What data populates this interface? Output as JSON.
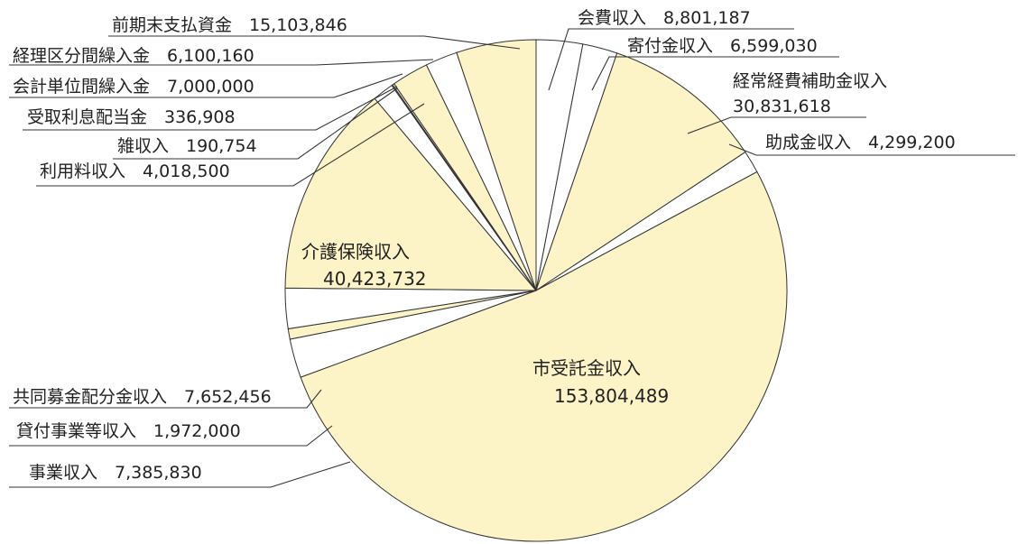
{
  "chart_data": {
    "type": "pie",
    "start_angle_deg": -90,
    "direction": "clockwise",
    "colors": {
      "filled": "#FCF3C6",
      "unfilled": "#FFFFFF",
      "outline": "#333333",
      "text": "#222222"
    },
    "slices": [
      {
        "label": "会費収入",
        "value": 8801187,
        "value_text": "8,801,187",
        "filled": false
      },
      {
        "label": "寄付金収入",
        "value": 6599030,
        "value_text": "6,599,030",
        "filled": false
      },
      {
        "label": "経常経費補助金収入",
        "value": 30831618,
        "value_text": "30,831,618",
        "filled": true
      },
      {
        "label": "助成金収入",
        "value": 4299200,
        "value_text": "4,299,200",
        "filled": false
      },
      {
        "label": "市受託金収入",
        "value": 153804489,
        "value_text": "153,804,489",
        "filled": true
      },
      {
        "label": "事業収入",
        "value": 7385830,
        "value_text": "7,385,830",
        "filled": false
      },
      {
        "label": "貸付事業等収入",
        "value": 1972000,
        "value_text": "1,972,000",
        "filled": true
      },
      {
        "label": "共同募金配分金収入",
        "value": 7652456,
        "value_text": "7,652,456",
        "filled": false
      },
      {
        "label": "介護保険収入",
        "value": 40423732,
        "value_text": "40,423,732",
        "filled": true
      },
      {
        "label": "利用料収入",
        "value": 4018500,
        "value_text": "4,018,500",
        "filled": false
      },
      {
        "label": "雑収入",
        "value": 190754,
        "value_text": "190,754",
        "filled": true
      },
      {
        "label": "受取利息配当金",
        "value": 336908,
        "value_text": "336,908",
        "filled": false
      },
      {
        "label": "会計単位間繰入金",
        "value": 7000000,
        "value_text": "7,000,000",
        "filled": true
      },
      {
        "label": "経理区分間繰入金",
        "value": 6100160,
        "value_text": "6,100,160",
        "filled": false
      },
      {
        "label": "前期末支払資金",
        "value": 15103846,
        "value_text": "15,103,846",
        "filled": true
      }
    ]
  }
}
